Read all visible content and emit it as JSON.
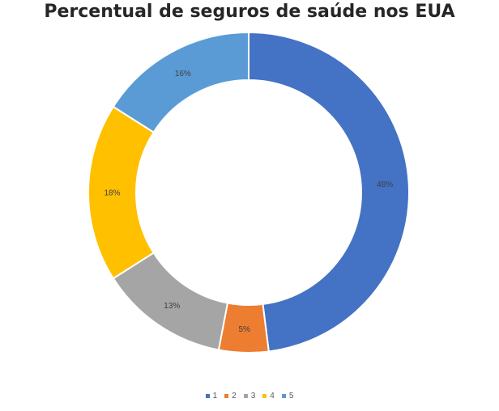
{
  "chart_data": {
    "type": "pie",
    "variant": "donut",
    "title": "Percentual de seguros de saúde nos EUA",
    "categories": [
      "1",
      "2",
      "3",
      "4",
      "5"
    ],
    "values": [
      48,
      5,
      13,
      18,
      16
    ],
    "labels": [
      "48%",
      "5%",
      "13%",
      "18%",
      "16%"
    ],
    "colors": [
      "#4472C4",
      "#ED7D31",
      "#A5A5A5",
      "#FFC000",
      "#5B9BD5"
    ],
    "legend": "bottom"
  }
}
